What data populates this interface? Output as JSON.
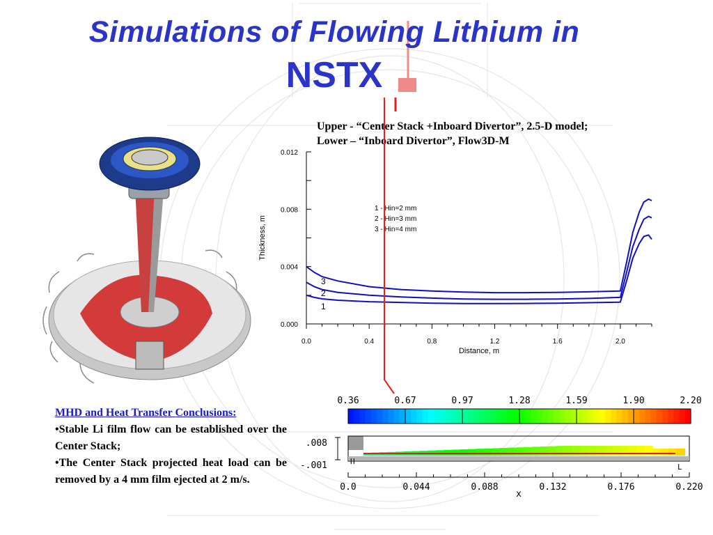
{
  "slide": {
    "title_line1": "Simulations of Flowing Lithium in",
    "title_line2": "NSTX",
    "caption_line1": "Upper - “Center Stack +Inboard Divertor”,  2.5-D model;",
    "caption_line2": "Lower – “Inboard Divertor”, Flow3D-M",
    "conclusions_heading": "MHD and Heat Transfer Conclusions:",
    "conclusions": [
      "•Stable Li film flow can be established over the Center Stack;",
      "•The Center Stack projected heat load can be  removed by a 4 mm film ejected at 2 m/s."
    ]
  },
  "chart_data": [
    {
      "type": "line",
      "xlabel": "Distance, m",
      "ylabel": "Thickness, m",
      "xlim": [
        0.0,
        2.2
      ],
      "ylim": [
        0.0,
        0.012
      ],
      "x_ticks": [
        "0.0",
        "0.4",
        "0.8",
        "1.2",
        "1.6",
        "2.0"
      ],
      "y_ticks": [
        "0.000",
        "0.004",
        "0.008",
        "0.012"
      ],
      "legend_text": [
        "1 - Hin=2 mm",
        "2 - Hin=3 mm",
        "3 - Hin=4 mm"
      ],
      "curve_labels": [
        "3",
        "2",
        "1"
      ],
      "line_color": "#1010c0",
      "series": [
        {
          "name": "1",
          "x": [
            0.0,
            0.05,
            0.1,
            0.2,
            0.4,
            0.6,
            0.8,
            1.0,
            1.2,
            1.4,
            1.6,
            1.8,
            2.0,
            2.04,
            2.08,
            2.12,
            2.15,
            2.18,
            2.2
          ],
          "y": [
            0.002,
            0.00185,
            0.00175,
            0.00165,
            0.00155,
            0.0015,
            0.00145,
            0.00142,
            0.00142,
            0.00143,
            0.00145,
            0.00148,
            0.00152,
            0.003,
            0.0046,
            0.0056,
            0.0061,
            0.0062,
            0.0059
          ]
        },
        {
          "name": "2",
          "x": [
            0.0,
            0.05,
            0.1,
            0.2,
            0.4,
            0.6,
            0.8,
            1.0,
            1.2,
            1.4,
            1.6,
            1.8,
            2.0,
            2.04,
            2.08,
            2.12,
            2.15,
            2.18,
            2.2
          ],
          "y": [
            0.0029,
            0.0026,
            0.0024,
            0.0022,
            0.002,
            0.00188,
            0.0018,
            0.00174,
            0.00172,
            0.00172,
            0.00174,
            0.00178,
            0.00185,
            0.0036,
            0.0054,
            0.0066,
            0.0073,
            0.0075,
            0.0074
          ]
        },
        {
          "name": "3",
          "x": [
            0.0,
            0.05,
            0.1,
            0.2,
            0.4,
            0.6,
            0.8,
            1.0,
            1.2,
            1.4,
            1.6,
            1.8,
            2.0,
            2.04,
            2.08,
            2.12,
            2.15,
            2.18,
            2.2
          ],
          "y": [
            0.004,
            0.0036,
            0.0033,
            0.003,
            0.0026,
            0.0024,
            0.0023,
            0.00222,
            0.00218,
            0.00218,
            0.0022,
            0.00224,
            0.0023,
            0.0043,
            0.0064,
            0.0078,
            0.0085,
            0.0087,
            0.0086
          ]
        }
      ]
    },
    {
      "type": "heatmap",
      "xlabel": "x",
      "x_ticks": [
        "0.0",
        "0.044",
        "0.088",
        "0.132",
        "0.176",
        "0.220"
      ],
      "y_ticks": [
        ".008",
        "-.001"
      ],
      "colorbar_ticks": [
        "0.36",
        "0.67",
        "0.97",
        "1.28",
        "1.59",
        "1.90",
        "2.20"
      ],
      "colorbar_range": [
        0.36,
        2.2
      ],
      "domain_labels": [
        "H",
        "L"
      ]
    }
  ]
}
